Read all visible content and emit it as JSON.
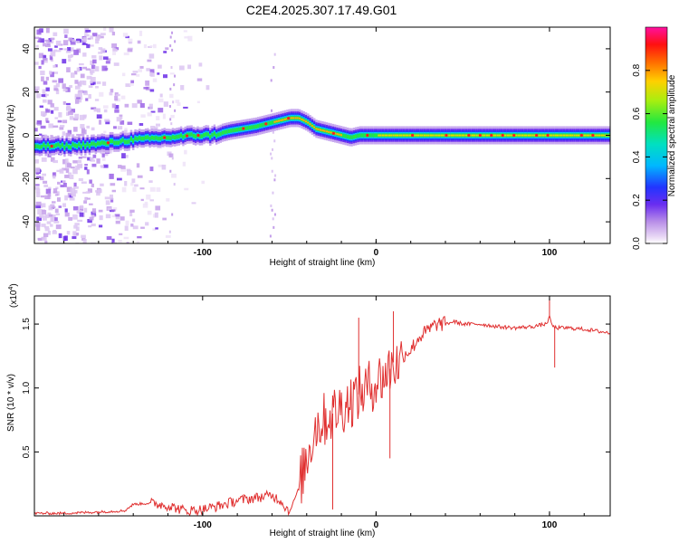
{
  "title": "C2E4.2025.307.17.49.G01",
  "colors": {
    "snr_line": "#e03030",
    "frame": "#000000"
  },
  "chart_data": [
    {
      "type": "heatmap",
      "name": "spectrogram",
      "xlabel": "Height of straight line (km)",
      "ylabel": "Frequency (Hz)",
      "xlim": [
        -197,
        135
      ],
      "ylim": [
        -50,
        50
      ],
      "xticks": [
        -100,
        0,
        100
      ],
      "xtick_labels": [
        "-100",
        "0",
        "100"
      ],
      "yticks": [
        40,
        20,
        0,
        -20,
        -40
      ],
      "ytick_labels": [
        "40",
        "20",
        "0",
        "-20",
        "-40"
      ],
      "colorbar": {
        "label": "Normalized spectral amplitude",
        "range": [
          0,
          1
        ],
        "ticks": [
          0.0,
          0.2,
          0.4,
          0.6,
          0.8
        ],
        "tick_labels": [
          "0.0",
          "0.2",
          "0.4",
          "0.6",
          "0.8"
        ]
      },
      "ridge": {
        "description": "peak frequency trace (Hz) vs height (km)",
        "x": [
          -197,
          -180,
          -160,
          -140,
          -120,
          -105,
          -95,
          -85,
          -70,
          -60,
          -50,
          -45,
          -40,
          -35,
          -30,
          -25,
          -20,
          -15,
          -10,
          -5,
          0,
          20,
          60,
          100,
          135
        ],
        "y": [
          -5,
          -5,
          -4,
          -2,
          -1,
          0,
          0,
          2,
          4,
          6,
          8,
          8,
          6,
          3,
          2,
          1,
          0,
          -1,
          0,
          0,
          0,
          0,
          0,
          0,
          0
        ]
      }
    },
    {
      "type": "line",
      "name": "snr",
      "xlabel": "Height of straight line (km)",
      "ylabel": "SNR (10 * v/v)",
      "yscale_label": "(x10",
      "yscale_exp": "4",
      "yscale_close": ")",
      "xlim": [
        -197,
        135
      ],
      "ylim": [
        0,
        1.72
      ],
      "xticks": [
        -100,
        0,
        100
      ],
      "xtick_labels": [
        "-100",
        "0",
        "100"
      ],
      "yticks": [
        1.5,
        1.0,
        0.5
      ],
      "ytick_labels": [
        "1.5",
        "1.0",
        "0.5"
      ],
      "series": [
        {
          "name": "SNR",
          "x": [
            -197,
            -180,
            -160,
            -145,
            -140,
            -130,
            -120,
            -110,
            -100,
            -90,
            -80,
            -70,
            -60,
            -55,
            -50,
            -45,
            -40,
            -35,
            -30,
            -25,
            -20,
            -15,
            -10,
            -5,
            0,
            5,
            8,
            10,
            12,
            15,
            20,
            25,
            30,
            35,
            40,
            45,
            50,
            60,
            70,
            80,
            90,
            98,
            100,
            102,
            104,
            110,
            120,
            135
          ],
          "y": [
            0.02,
            0.02,
            0.03,
            0.04,
            0.09,
            0.1,
            0.08,
            0.04,
            0.05,
            0.08,
            0.12,
            0.14,
            0.16,
            0.12,
            0.03,
            0.2,
            0.45,
            0.7,
            0.75,
            0.8,
            0.85,
            0.9,
            0.95,
            1.0,
            1.05,
            1.1,
            1.15,
            1.2,
            1.18,
            1.25,
            1.3,
            1.4,
            1.45,
            1.5,
            1.5,
            1.52,
            1.5,
            1.5,
            1.48,
            1.47,
            1.48,
            1.5,
            1.55,
            1.48,
            1.47,
            1.47,
            1.46,
            1.43
          ]
        }
      ],
      "spikes": {
        "x": [
          -25,
          -10,
          8,
          10,
          100,
          103
        ],
        "y": [
          0.05,
          1.55,
          0.45,
          1.6,
          1.7,
          1.16
        ]
      }
    }
  ]
}
